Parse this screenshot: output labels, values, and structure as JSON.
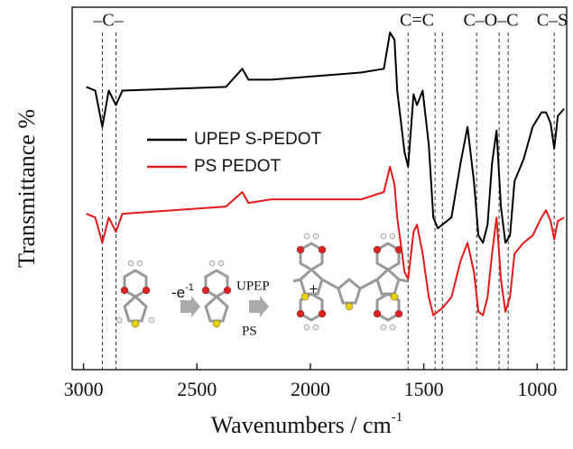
{
  "chart_data": {
    "type": "line",
    "ylabel": "Transmittance %",
    "xlabel": "Wavenumbers / cm",
    "xlabel_sup": "-1",
    "xlim": [
      3050,
      870
    ],
    "xticks": [
      3000,
      2500,
      2000,
      1500,
      1000
    ],
    "ylim": [
      0,
      100
    ],
    "x": [
      2988,
      2948,
      2917,
      2889,
      2857,
      2829,
      2372,
      2300,
      2273,
      2173,
      1775,
      1676,
      1649,
      1629,
      1617,
      1585,
      1569,
      1545,
      1530,
      1505,
      1478,
      1458,
      1438,
      1418,
      1378,
      1338,
      1307,
      1279,
      1259,
      1239,
      1219,
      1199,
      1179,
      1160,
      1140,
      1120,
      1100,
      1060,
      1020,
      981,
      961,
      941,
      925,
      909,
      881
    ],
    "series": [
      {
        "name": "UPEP  S-PEDOT",
        "color": "#000000",
        "values": [
          78,
          77,
          67,
          77,
          73,
          77,
          78,
          83,
          80,
          80,
          82,
          83,
          93,
          91,
          77,
          60,
          56,
          76,
          73,
          77,
          62,
          42,
          39,
          40,
          42,
          57,
          67,
          52,
          37,
          35,
          40,
          57,
          66,
          45,
          35,
          37,
          52,
          58,
          67,
          71,
          71,
          68,
          61,
          70,
          72
        ]
      },
      {
        "name": "PS PEDOT",
        "color": "#e31a1c",
        "values": [
          43,
          42,
          35,
          42,
          38,
          43,
          45,
          49,
          46,
          47,
          47,
          49,
          56,
          51,
          42,
          27,
          25,
          38,
          40,
          32,
          20,
          15,
          16,
          17,
          20,
          30,
          35,
          27,
          16,
          15,
          20,
          32,
          42,
          25,
          16,
          20,
          32,
          35,
          37,
          42,
          44,
          41,
          36,
          41,
          42
        ]
      }
    ],
    "reference_lines": [
      2917,
      2857,
      1569,
      1450,
      1418,
      1267,
      1168,
      1128,
      925
    ],
    "annotations": [
      "–C–",
      "C=C",
      "C–O–C",
      "C–S"
    ],
    "inset": {
      "oxidation": "-e",
      "oxidation_sup": "-1",
      "upep": "UPEP",
      "ps": "PS"
    }
  }
}
